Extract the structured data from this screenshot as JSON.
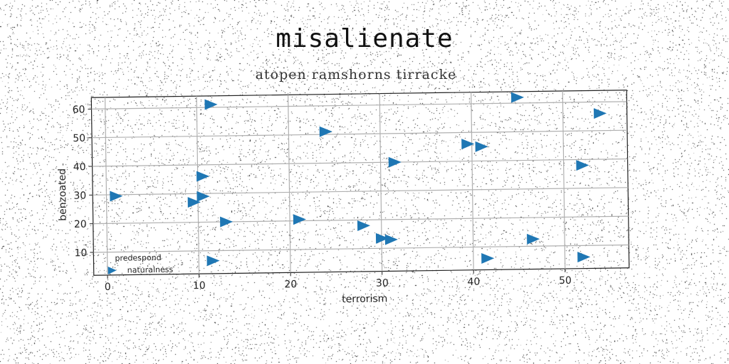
{
  "chart_data": {
    "type": "scatter",
    "title": "misalienate",
    "subtitle": "atopen ramshorns tirracke",
    "xlabel": "terrorism",
    "ylabel": "benzoated",
    "xlim": [
      -1.5,
      57
    ],
    "ylim": [
      2,
      64
    ],
    "xticks": [
      0,
      10,
      20,
      30,
      40,
      50
    ],
    "yticks": [
      10,
      20,
      30,
      40,
      50,
      60
    ],
    "grid": true,
    "legend": {
      "title": "predespond",
      "placement": "lower-left"
    },
    "series": [
      {
        "name": "naturalness",
        "color": "#1f77b4",
        "marker": "triangle-right",
        "points": [
          [
            45,
            62
          ],
          [
            11.5,
            61
          ],
          [
            54,
            56
          ],
          [
            24,
            51
          ],
          [
            39.5,
            46
          ],
          [
            41,
            45
          ],
          [
            31.5,
            40
          ],
          [
            52,
            38
          ],
          [
            10.5,
            36
          ],
          [
            1,
            29.5
          ],
          [
            10.5,
            29
          ],
          [
            9.5,
            27
          ],
          [
            13,
            20
          ],
          [
            21,
            20.5
          ],
          [
            28,
            18
          ],
          [
            30,
            13.5
          ],
          [
            31,
            13
          ],
          [
            46.5,
            12.5
          ],
          [
            11.5,
            6.5
          ],
          [
            41.5,
            6
          ],
          [
            52,
            6
          ]
        ]
      }
    ]
  }
}
